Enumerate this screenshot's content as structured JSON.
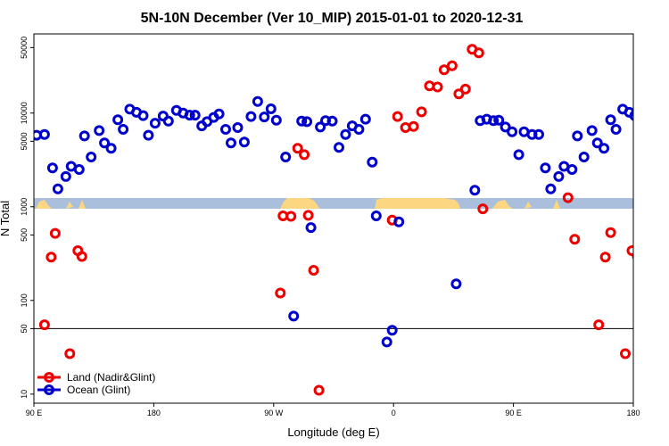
{
  "chart_data": {
    "type": "scatter",
    "title": "5N-10N December (Ver 10_MIP)   2015-01-01 to 2020-12-31",
    "xlabel": "Longitude (deg E)",
    "ylabel": "N Total",
    "x_scale": "linear",
    "y_scale": "log",
    "xlim": [
      90,
      540
    ],
    "ylim": [
      8,
      70000
    ],
    "x_ticks": [
      {
        "value": 90,
        "label": "90 E"
      },
      {
        "value": 180,
        "label": "180"
      },
      {
        "value": 270,
        "label": "90 W"
      },
      {
        "value": 360,
        "label": "0"
      },
      {
        "value": 450,
        "label": "90 E"
      },
      {
        "value": 540,
        "label": "180"
      }
    ],
    "y_ticks": [
      {
        "value": 10,
        "label": "10"
      },
      {
        "value": 50,
        "label": "50"
      },
      {
        "value": 100,
        "label": "100"
      },
      {
        "value": 500,
        "label": "500"
      },
      {
        "value": 1000,
        "label": "1000"
      },
      {
        "value": 5000,
        "label": "5000"
      },
      {
        "value": 10000,
        "label": "10000"
      },
      {
        "value": 50000,
        "label": "50000"
      }
    ],
    "reference_line": 50,
    "legend": {
      "placement": "bottom-left"
    },
    "series": [
      {
        "name": "Land (Nadir&Glint)",
        "color": "#ee0000",
        "points": [
          [
            98,
            55
          ],
          [
            103,
            290
          ],
          [
            106,
            520
          ],
          [
            117,
            27
          ],
          [
            123,
            340
          ],
          [
            126,
            295
          ],
          [
            275,
            120
          ],
          [
            277,
            800
          ],
          [
            283,
            790
          ],
          [
            288,
            4200
          ],
          [
            293,
            3600
          ],
          [
            296,
            810
          ],
          [
            300,
            210
          ],
          [
            304,
            11
          ],
          [
            359,
            720
          ],
          [
            363,
            9200
          ],
          [
            369,
            7000
          ],
          [
            375,
            7200
          ],
          [
            381,
            10300
          ],
          [
            387,
            19500
          ],
          [
            393,
            19000
          ],
          [
            398,
            29000
          ],
          [
            404,
            32000
          ],
          [
            409,
            16000
          ],
          [
            414,
            18000
          ],
          [
            419,
            48000
          ],
          [
            424,
            44000
          ],
          [
            427,
            950
          ],
          [
            491,
            1250
          ],
          [
            496,
            450
          ],
          [
            514,
            55
          ],
          [
            519,
            290
          ],
          [
            523,
            530
          ],
          [
            534,
            27
          ],
          [
            539,
            340
          ],
          [
            543,
            295
          ]
        ]
      },
      {
        "name": "Ocean (Glint)",
        "color": "#0000cc",
        "points": [
          [
            92,
            5800
          ],
          [
            98,
            5900
          ],
          [
            104,
            2600
          ],
          [
            108,
            1550
          ],
          [
            114,
            2100
          ],
          [
            118,
            2700
          ],
          [
            124,
            2500
          ],
          [
            128,
            5700
          ],
          [
            133,
            3400
          ],
          [
            139,
            6500
          ],
          [
            143,
            4800
          ],
          [
            148,
            4200
          ],
          [
            153,
            8500
          ],
          [
            157,
            6700
          ],
          [
            162,
            11000
          ],
          [
            167,
            10200
          ],
          [
            172,
            9400
          ],
          [
            176,
            5800
          ],
          [
            181,
            7800
          ],
          [
            187,
            9300
          ],
          [
            191,
            8200
          ],
          [
            197,
            10700
          ],
          [
            202,
            10000
          ],
          [
            207,
            9500
          ],
          [
            211,
            9500
          ],
          [
            216,
            7300
          ],
          [
            220,
            8100
          ],
          [
            225,
            9000
          ],
          [
            229,
            9800
          ],
          [
            234,
            6700
          ],
          [
            238,
            4800
          ],
          [
            243,
            7000
          ],
          [
            248,
            4900
          ],
          [
            253,
            9200
          ],
          [
            258,
            13300
          ],
          [
            263,
            9100
          ],
          [
            268,
            11100
          ],
          [
            272,
            8400
          ],
          [
            279,
            3400
          ],
          [
            285,
            68
          ],
          [
            291,
            8200
          ],
          [
            295,
            8100
          ],
          [
            298,
            600
          ],
          [
            305,
            7100
          ],
          [
            309,
            8300
          ],
          [
            314,
            8200
          ],
          [
            319,
            4300
          ],
          [
            324,
            5900
          ],
          [
            329,
            7300
          ],
          [
            334,
            6700
          ],
          [
            339,
            8600
          ],
          [
            344,
            3000
          ],
          [
            347,
            800
          ],
          [
            355,
            36
          ],
          [
            359,
            48
          ],
          [
            364,
            690
          ],
          [
            407,
            150
          ],
          [
            421,
            1500
          ],
          [
            425,
            8300
          ],
          [
            430,
            8600
          ],
          [
            435,
            8300
          ],
          [
            439,
            8400
          ],
          [
            444,
            7100
          ],
          [
            449,
            6300
          ],
          [
            454,
            3600
          ],
          [
            458,
            6300
          ],
          [
            464,
            5900
          ],
          [
            469,
            5900
          ],
          [
            474,
            2600
          ],
          [
            478,
            1550
          ],
          [
            484,
            2100
          ],
          [
            488,
            2700
          ],
          [
            494,
            2500
          ],
          [
            498,
            5700
          ],
          [
            503,
            3400
          ],
          [
            509,
            6500
          ],
          [
            513,
            4800
          ],
          [
            518,
            4200
          ],
          [
            523,
            8500
          ],
          [
            527,
            6700
          ],
          [
            532,
            11000
          ],
          [
            537,
            10200
          ],
          [
            541,
            9400
          ],
          [
            546,
            5800
          ]
        ]
      }
    ]
  }
}
